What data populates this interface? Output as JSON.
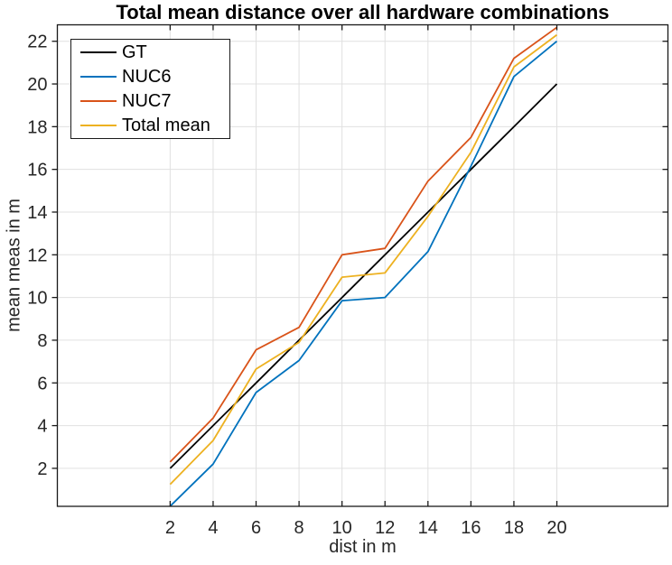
{
  "figure_title": "Total mean distance over all hardware combinations",
  "chart_data": {
    "type": "line",
    "title": "Total mean distance over all hardware combinations",
    "xlabel": "dist in m",
    "ylabel": "mean meas in m",
    "x": [
      2,
      4,
      6,
      8,
      10,
      12,
      14,
      16,
      18,
      20
    ],
    "series": [
      {
        "name": "GT",
        "color": "#000000",
        "values": [
          2,
          4,
          6,
          8,
          10,
          12,
          14,
          16,
          18,
          20
        ]
      },
      {
        "name": "NUC6",
        "color": "#0072BD",
        "values": [
          0.23,
          2.2,
          5.55,
          7.05,
          9.85,
          10.0,
          12.15,
          16.15,
          20.35,
          22.0
        ]
      },
      {
        "name": "NUC7",
        "color": "#D95319",
        "values": [
          2.3,
          4.35,
          7.55,
          8.6,
          12.0,
          12.3,
          15.45,
          17.5,
          21.2,
          22.65
        ]
      },
      {
        "name": "Total mean",
        "color": "#EDB120",
        "values": [
          1.25,
          3.3,
          6.65,
          7.9,
          10.95,
          11.15,
          13.8,
          16.8,
          20.8,
          22.3
        ]
      }
    ],
    "xlim": [
      -3.25,
      25.17
    ],
    "ylim": [
      0.22,
      22.77
    ],
    "xticks": [
      2,
      4,
      6,
      8,
      10,
      12,
      14,
      16,
      18,
      20
    ],
    "yticks": [
      2,
      4,
      6,
      8,
      10,
      12,
      14,
      16,
      18,
      20,
      22
    ],
    "grid": true,
    "grid_color": "#E0E0E0",
    "axis_color": "#1a1a1a",
    "legend_position": "top-left"
  }
}
